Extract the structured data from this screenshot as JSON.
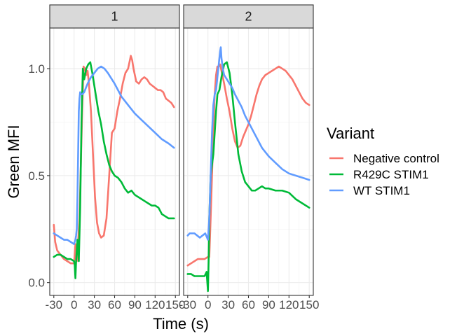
{
  "chart_data": {
    "type": "line",
    "xlabel": "Time (s)",
    "ylabel": "Green MFI",
    "xlim": [
      -36,
      156
    ],
    "ylim": [
      -0.06,
      1.19
    ],
    "x_ticks": [
      -30,
      0,
      30,
      60,
      90,
      120,
      150
    ],
    "x_tick_labels": [
      "-30",
      "0",
      "30",
      "60",
      "90",
      "120",
      "150"
    ],
    "y_ticks": [
      0.0,
      0.5,
      1.0
    ],
    "y_tick_labels": [
      "0.0",
      "0.5",
      "1.0"
    ],
    "grid": true,
    "legend": {
      "title": "Variant",
      "position": "right",
      "entries": [
        "Negative control",
        "R429C STIM1",
        "WT STIM1"
      ]
    },
    "panels": [
      {
        "label": "1",
        "series": [
          {
            "name": "Negative control",
            "color": "#F8766D",
            "x": [
              -30,
              -28,
              -25,
              -20,
              -15,
              -10,
              -5,
              0,
              2,
              4,
              6,
              8,
              10,
              12,
              14,
              16,
              18,
              20,
              22,
              25,
              28,
              31,
              34,
              37,
              40,
              44,
              48,
              52,
              56,
              60,
              64,
              68,
              72,
              76,
              80,
              84,
              86,
              88,
              92,
              96,
              100,
              104,
              108,
              112,
              116,
              120,
              124,
              128,
              132,
              136,
              140,
              144,
              148
            ],
            "y": [
              0.27,
              0.19,
              0.15,
              0.13,
              0.11,
              0.1,
              0.09,
              0.09,
              0.18,
              0.1,
              0.19,
              0.3,
              0.55,
              0.8,
              1.01,
              1.0,
              0.97,
              0.99,
              0.93,
              0.8,
              0.6,
              0.4,
              0.28,
              0.23,
              0.21,
              0.22,
              0.3,
              0.5,
              0.7,
              0.72,
              0.8,
              0.86,
              0.93,
              0.98,
              1.0,
              1.06,
              1.04,
              1.0,
              0.94,
              0.93,
              0.95,
              0.96,
              0.95,
              0.93,
              0.92,
              0.91,
              0.9,
              0.9,
              0.89,
              0.86,
              0.85,
              0.84,
              0.82
            ]
          },
          {
            "name": "R429C STIM1",
            "color": "#00BA38",
            "x": [
              -30,
              -25,
              -20,
              -15,
              -10,
              -5,
              0,
              1,
              2,
              3,
              5,
              7,
              9,
              11,
              13,
              15,
              18,
              21,
              24,
              27,
              30,
              33,
              36,
              40,
              44,
              48,
              52,
              56,
              60,
              65,
              70,
              75,
              80,
              85,
              90,
              95,
              100,
              105,
              110,
              115,
              120,
              125,
              130,
              135,
              140,
              145,
              148
            ],
            "y": [
              0.12,
              0.13,
              0.13,
              0.12,
              0.11,
              0.11,
              0.1,
              0.08,
              0.02,
              0.1,
              0.2,
              0.1,
              0.35,
              0.75,
              1.0,
              0.95,
              1.0,
              1.02,
              1.03,
              0.98,
              0.92,
              0.86,
              0.8,
              0.74,
              0.66,
              0.6,
              0.55,
              0.52,
              0.5,
              0.49,
              0.47,
              0.44,
              0.42,
              0.43,
              0.41,
              0.4,
              0.39,
              0.38,
              0.37,
              0.36,
              0.36,
              0.35,
              0.32,
              0.31,
              0.3,
              0.3,
              0.3
            ]
          },
          {
            "name": "WT STIM1",
            "color": "#619CFF",
            "x": [
              -30,
              -25,
              -20,
              -15,
              -10,
              -5,
              0,
              1,
              2,
              3,
              4,
              5,
              6,
              7,
              8,
              9,
              10,
              12,
              15,
              20,
              25,
              30,
              35,
              40,
              45,
              50,
              60,
              70,
              80,
              90,
              100,
              110,
              120,
              130,
              140,
              148
            ],
            "y": [
              0.23,
              0.22,
              0.21,
              0.2,
              0.2,
              0.19,
              0.18,
              0.19,
              0.2,
              0.22,
              0.25,
              0.4,
              0.6,
              0.8,
              0.86,
              0.89,
              0.88,
              0.88,
              0.89,
              0.93,
              0.96,
              0.98,
              1.0,
              1.01,
              1.0,
              0.98,
              0.93,
              0.87,
              0.83,
              0.79,
              0.76,
              0.73,
              0.7,
              0.67,
              0.65,
              0.63
            ]
          }
        ]
      },
      {
        "label": "2",
        "series": [
          {
            "name": "Negative control",
            "color": "#F8766D",
            "x": [
              -30,
              -25,
              -20,
              -15,
              -10,
              -5,
              0,
              2,
              4,
              6,
              8,
              10,
              12,
              14,
              16,
              18,
              20,
              24,
              28,
              32,
              36,
              40,
              44,
              48,
              52,
              56,
              60,
              64,
              68,
              72,
              76,
              80,
              85,
              90,
              95,
              100,
              105,
              110,
              115,
              120,
              125,
              130,
              135,
              140,
              145,
              150
            ],
            "y": [
              0.08,
              0.09,
              0.1,
              0.11,
              0.11,
              0.11,
              0.12,
              0.12,
              0.3,
              0.5,
              0.7,
              0.88,
              0.97,
              1.01,
              1.01,
              1.02,
              0.99,
              0.93,
              0.86,
              0.8,
              0.72,
              0.66,
              0.63,
              0.64,
              0.68,
              0.71,
              0.74,
              0.78,
              0.83,
              0.88,
              0.92,
              0.95,
              0.97,
              0.98,
              0.99,
              1.0,
              1.01,
              1.0,
              0.99,
              0.97,
              0.95,
              0.92,
              0.89,
              0.86,
              0.84,
              0.83
            ]
          },
          {
            "name": "R429C STIM1",
            "color": "#00BA38",
            "x": [
              -30,
              -25,
              -20,
              -15,
              -10,
              -5,
              -2,
              0,
              1,
              2,
              4,
              6,
              8,
              10,
              12,
              14,
              17,
              20,
              24,
              28,
              32,
              36,
              40,
              45,
              50,
              55,
              60,
              65,
              70,
              75,
              80,
              85,
              90,
              100,
              110,
              120,
              130,
              140,
              150
            ],
            "y": [
              0.04,
              0.04,
              0.03,
              0.03,
              0.03,
              0.03,
              0.05,
              -0.04,
              0.1,
              0.3,
              0.5,
              0.55,
              0.6,
              0.7,
              0.8,
              0.88,
              0.9,
              0.96,
              1.02,
              1.03,
              0.98,
              0.88,
              0.75,
              0.6,
              0.52,
              0.47,
              0.45,
              0.43,
              0.43,
              0.44,
              0.45,
              0.44,
              0.44,
              0.43,
              0.43,
              0.42,
              0.39,
              0.37,
              0.35
            ]
          },
          {
            "name": "WT STIM1",
            "color": "#619CFF",
            "x": [
              -30,
              -27,
              -24,
              -20,
              -16,
              -12,
              -8,
              -4,
              0,
              2,
              4,
              6,
              8,
              10,
              12,
              14,
              16,
              18,
              19,
              20,
              22,
              24,
              28,
              32,
              36,
              40,
              45,
              50,
              55,
              60,
              70,
              80,
              90,
              100,
              110,
              120,
              130,
              140,
              150
            ],
            "y": [
              0.22,
              0.23,
              0.23,
              0.23,
              0.22,
              0.21,
              0.22,
              0.23,
              0.2,
              0.3,
              0.5,
              0.7,
              0.83,
              0.88,
              0.9,
              0.96,
              1.02,
              1.08,
              1.1,
              1.05,
              1.0,
              0.97,
              0.95,
              0.93,
              0.91,
              0.88,
              0.85,
              0.82,
              0.78,
              0.75,
              0.69,
              0.63,
              0.59,
              0.56,
              0.53,
              0.51,
              0.5,
              0.49,
              0.48
            ]
          }
        ]
      }
    ]
  }
}
